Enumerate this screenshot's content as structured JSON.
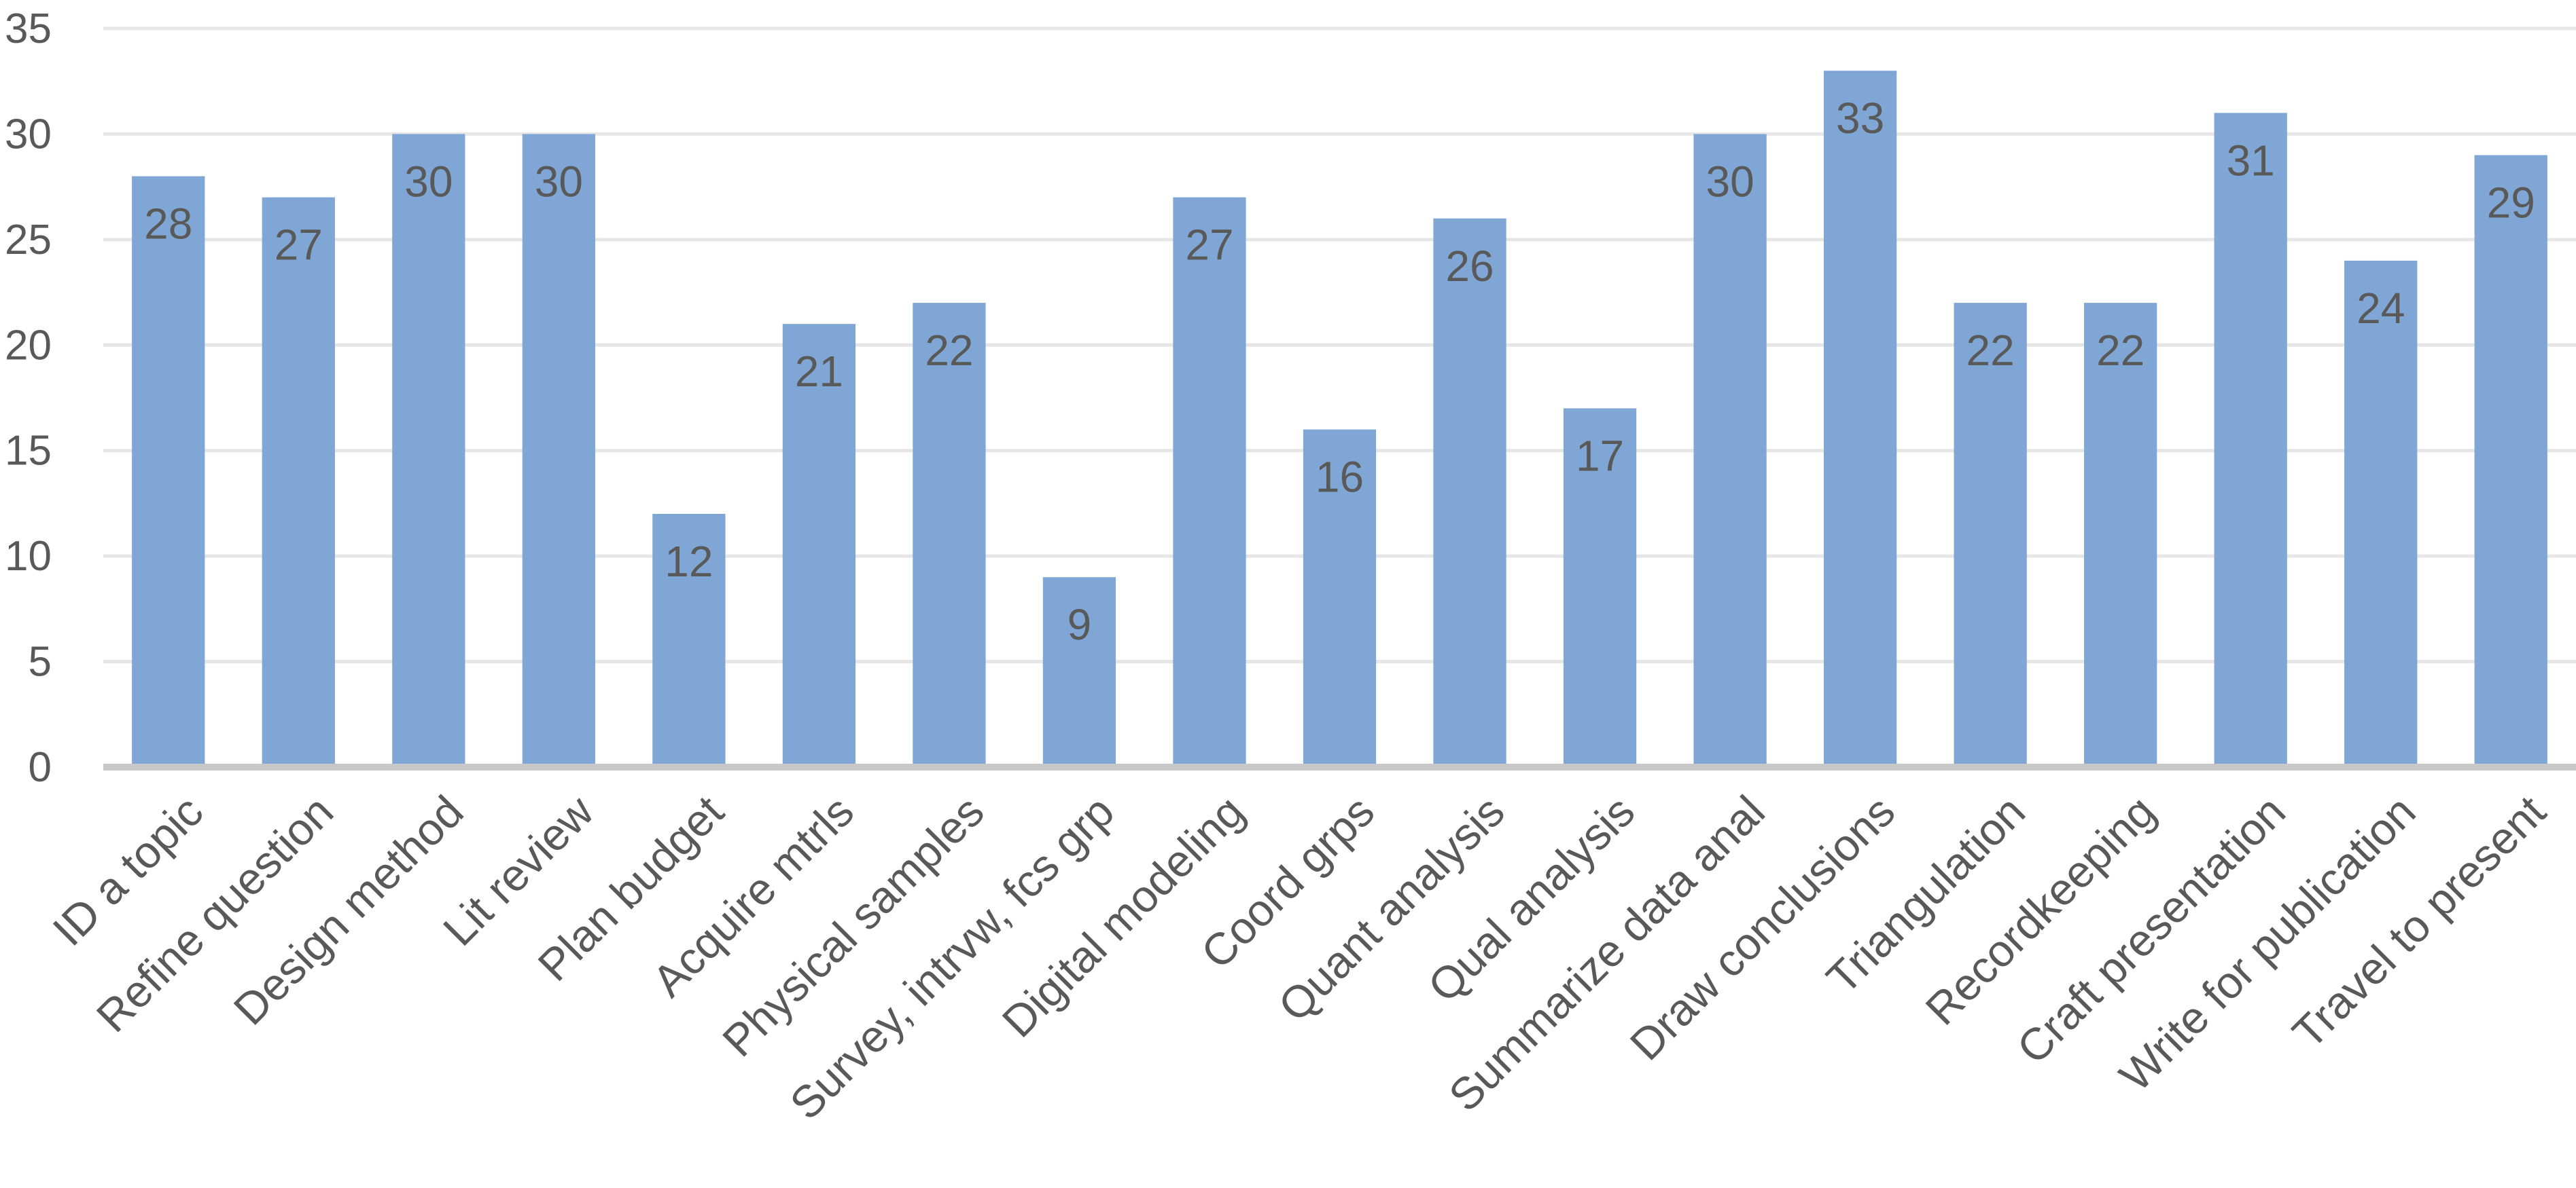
{
  "chart_data": {
    "type": "bar",
    "categories": [
      "ID a topic",
      "Refine question",
      "Design method",
      "Lit review",
      "Plan budget",
      "Acquire mtrls",
      "Physical samples",
      "Survey, intrvw, fcs grp",
      "Digital modeling",
      "Coord grps",
      "Quant analysis",
      "Qual analysis",
      "Summarize data anal",
      "Draw conclusions",
      "Triangulation",
      "Recordkeeping",
      "Craft presentation",
      "Write for publication",
      "Travel to present"
    ],
    "values": [
      28,
      27,
      30,
      30,
      12,
      21,
      22,
      9,
      27,
      16,
      26,
      17,
      30,
      33,
      22,
      22,
      31,
      24,
      29
    ],
    "ylim": [
      0,
      35
    ],
    "yticks": [
      0,
      5,
      10,
      15,
      20,
      25,
      30,
      35
    ],
    "grid": true,
    "data_labels": true,
    "title": "",
    "xlabel": "",
    "ylabel": "",
    "bar_color": "#7fa6d4",
    "label_color": "#595959"
  }
}
